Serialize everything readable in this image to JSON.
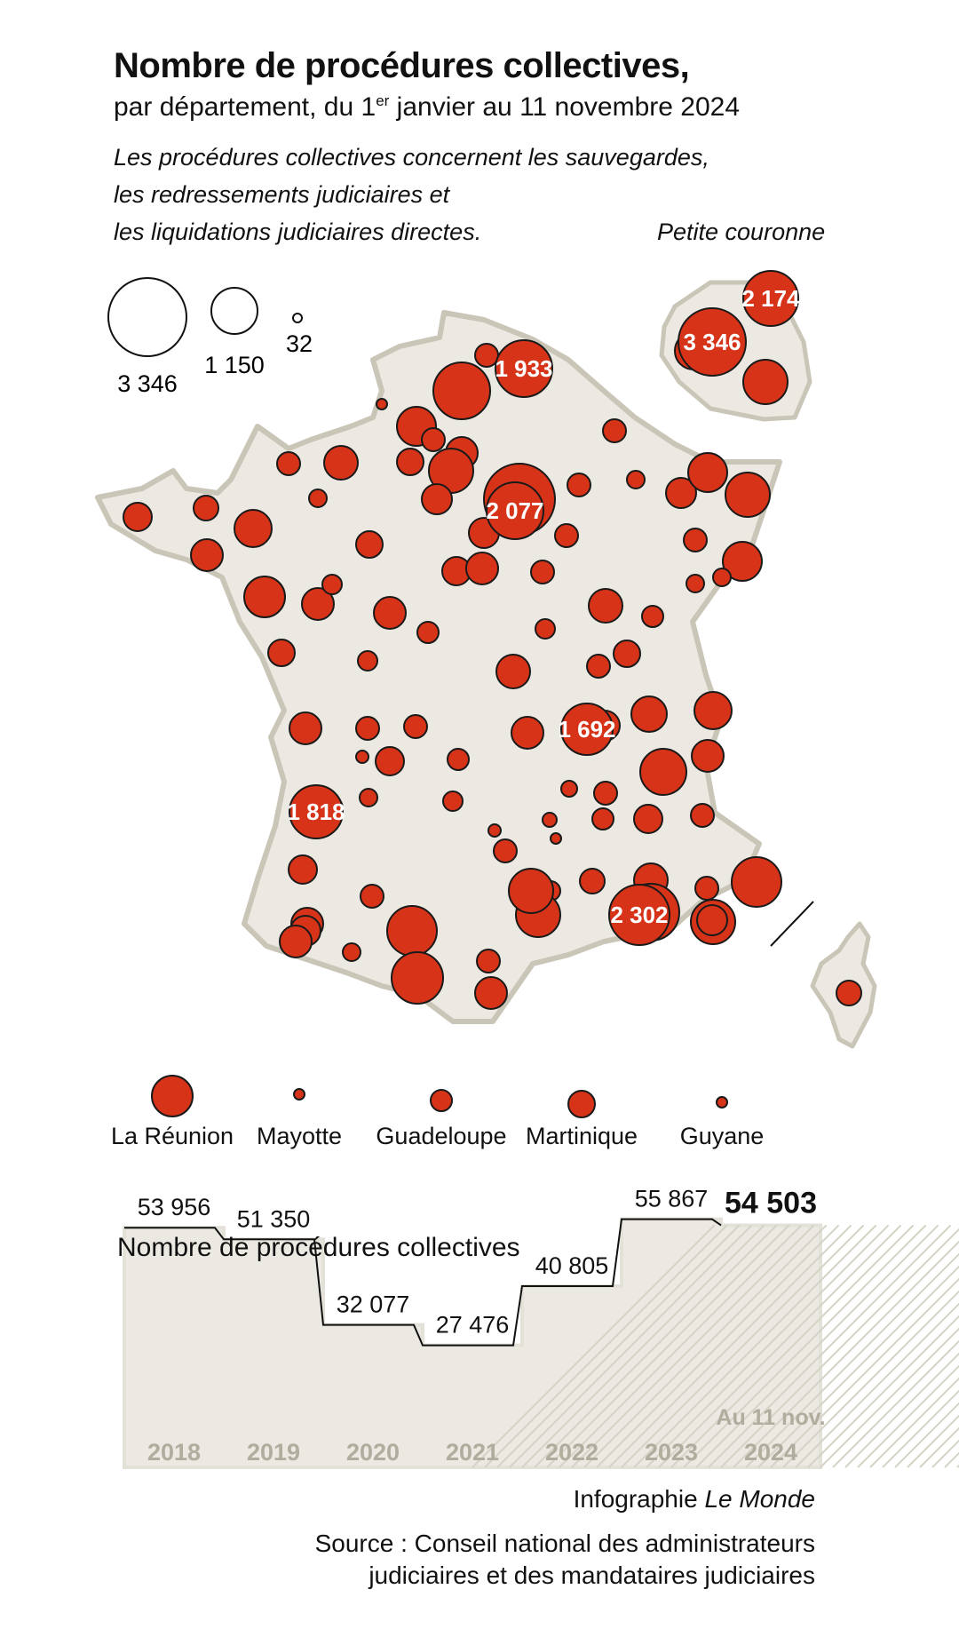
{
  "title": "Nombre de procédures collectives,",
  "subtitle_before": "par département, du 1",
  "subtitle_sup": "er",
  "subtitle_after": " janvier au 11 novembre 2024",
  "intro_lines": [
    "Les procédures collectives concernent les sauvegardes,",
    "les redressements judiciaires et",
    "les liquidations judiciaires directes."
  ],
  "petite_couronne_label": "Petite couronne",
  "size_legend": [
    {
      "label": "3 346",
      "value": 3346
    },
    {
      "label": "1 150",
      "value": 1150
    },
    {
      "label": "32",
      "value": 32
    }
  ],
  "colors": {
    "bubble": "#d63319",
    "bubble_stroke": "#1a1a1a",
    "land": "#ebe9e1",
    "coast": "#c9c6b8",
    "step_fill": "#ebe9e1",
    "year_text": "#b0ad9e"
  },
  "map_labels": [
    {
      "text": "1 933",
      "value": 1933
    },
    {
      "text": "2 077",
      "value": 2077
    },
    {
      "text": "1 692",
      "value": 1692
    },
    {
      "text": "1 818",
      "value": 1818
    },
    {
      "text": "2 302",
      "value": 2302
    },
    {
      "text": "3 346",
      "value": 3346
    },
    {
      "text": "2 174",
      "value": 2174
    }
  ],
  "outremer": [
    {
      "name": "La Réunion"
    },
    {
      "name": "Mayotte"
    },
    {
      "name": "Guadeloupe"
    },
    {
      "name": "Martinique"
    },
    {
      "name": "Guyane"
    }
  ],
  "chart_title": "Nombre de procédures collectives",
  "chart_data": {
    "type": "area",
    "title": "Nombre de procédures collectives",
    "categories": [
      "2018",
      "2019",
      "2020",
      "2021",
      "2022",
      "2023",
      "2024"
    ],
    "value_labels": [
      "53 956",
      "51 350",
      "32 077",
      "27 476",
      "40 805",
      "55 867",
      "54 503"
    ],
    "values": [
      53956,
      51350,
      32077,
      27476,
      40805,
      55867,
      54503
    ],
    "last_note": "Au 11 nov."
  },
  "credit_prefix": "Infographie ",
  "credit_brand": "Le Monde",
  "source_lines": [
    "Source : Conseil national des administrateurs",
    "judiciaires et des mandataires judiciaires"
  ]
}
